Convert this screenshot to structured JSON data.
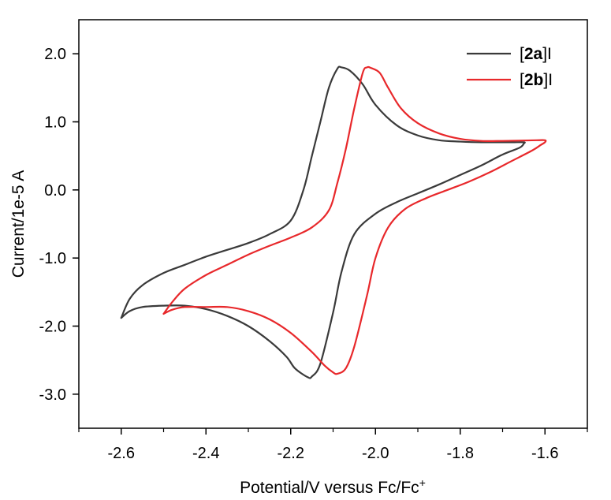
{
  "chart_data": {
    "type": "line",
    "title": "",
    "xlabel": "Potential/V versus Fc/Fc",
    "xlabel_superscript": "+",
    "ylabel": "Current/1e-5 A",
    "xlim": [
      -2.7,
      -1.5
    ],
    "ylim": [
      -3.5,
      2.5
    ],
    "xticks": [
      -2.6,
      -2.4,
      -2.2,
      -2.0,
      -1.8,
      -1.6
    ],
    "xtick_labels": [
      "-2.6",
      "-2.4",
      "-2.2",
      "-2.0",
      "-1.8",
      "-1.6"
    ],
    "yticks": [
      2.0,
      1.0,
      0.0,
      -1.0,
      -2.0,
      -3.0
    ],
    "ytick_labels": [
      "2.0",
      "1.0",
      "0.0",
      "-1.0",
      "-2.0",
      "-3.0"
    ],
    "grid": false,
    "legend_position": "top-right",
    "series": [
      {
        "name": "[2a]I",
        "legend_parts": [
          "[",
          "2a",
          "]I"
        ],
        "color": "#3a3a3a",
        "x": [
          -2.6,
          -2.58,
          -2.55,
          -2.5,
          -2.45,
          -2.4,
          -2.35,
          -2.3,
          -2.25,
          -2.21,
          -2.19,
          -2.16,
          -2.15,
          -2.13,
          -2.1,
          -2.08,
          -2.05,
          -2.0,
          -1.95,
          -1.9,
          -1.85,
          -1.8,
          -1.75,
          -1.7,
          -1.66,
          -1.65,
          -1.65,
          -1.68,
          -1.75,
          -1.8,
          -1.85,
          -1.9,
          -1.95,
          -2.0,
          -2.03,
          -2.06,
          -2.08,
          -2.09,
          -2.11,
          -2.13,
          -2.15,
          -2.17,
          -2.2,
          -2.25,
          -2.3,
          -2.35,
          -2.4,
          -2.45,
          -2.5,
          -2.55,
          -2.58,
          -2.6
        ],
        "y": [
          -1.88,
          -1.78,
          -1.72,
          -1.7,
          -1.7,
          -1.75,
          -1.85,
          -2.0,
          -2.22,
          -2.45,
          -2.62,
          -2.75,
          -2.74,
          -2.55,
          -1.8,
          -1.2,
          -0.65,
          -0.35,
          -0.18,
          -0.05,
          0.08,
          0.22,
          0.36,
          0.52,
          0.62,
          0.68,
          0.7,
          0.7,
          0.7,
          0.71,
          0.73,
          0.8,
          0.95,
          1.25,
          1.55,
          1.75,
          1.8,
          1.78,
          1.5,
          1.0,
          0.5,
          0.0,
          -0.45,
          -0.65,
          -0.78,
          -0.88,
          -0.98,
          -1.1,
          -1.22,
          -1.4,
          -1.6,
          -1.88
        ]
      },
      {
        "name": "[2b]I",
        "legend_parts": [
          "[",
          "2b",
          "]I"
        ],
        "color": "#e8282b",
        "x": [
          -2.5,
          -2.48,
          -2.45,
          -2.4,
          -2.35,
          -2.3,
          -2.25,
          -2.2,
          -2.15,
          -2.12,
          -2.1,
          -2.09,
          -2.07,
          -2.05,
          -2.02,
          -2.0,
          -1.97,
          -1.93,
          -1.88,
          -1.83,
          -1.78,
          -1.73,
          -1.68,
          -1.63,
          -1.61,
          -1.6,
          -1.6,
          -1.62,
          -1.7,
          -1.75,
          -1.8,
          -1.85,
          -1.9,
          -1.94,
          -1.97,
          -1.99,
          -2.01,
          -2.02,
          -2.03,
          -2.05,
          -2.07,
          -2.09,
          -2.11,
          -2.15,
          -2.2,
          -2.25,
          -2.3,
          -2.35,
          -2.4,
          -2.45,
          -2.48,
          -2.5
        ],
        "y": [
          -1.82,
          -1.76,
          -1.72,
          -1.72,
          -1.72,
          -1.78,
          -1.9,
          -2.1,
          -2.38,
          -2.58,
          -2.68,
          -2.7,
          -2.62,
          -2.3,
          -1.55,
          -1.0,
          -0.55,
          -0.28,
          -0.12,
          0.0,
          0.12,
          0.26,
          0.42,
          0.58,
          0.66,
          0.7,
          0.73,
          0.73,
          0.72,
          0.72,
          0.75,
          0.83,
          0.98,
          1.2,
          1.5,
          1.72,
          1.79,
          1.8,
          1.72,
          1.2,
          0.6,
          0.1,
          -0.3,
          -0.55,
          -0.7,
          -0.82,
          -0.95,
          -1.1,
          -1.25,
          -1.45,
          -1.65,
          -1.82
        ]
      }
    ]
  }
}
